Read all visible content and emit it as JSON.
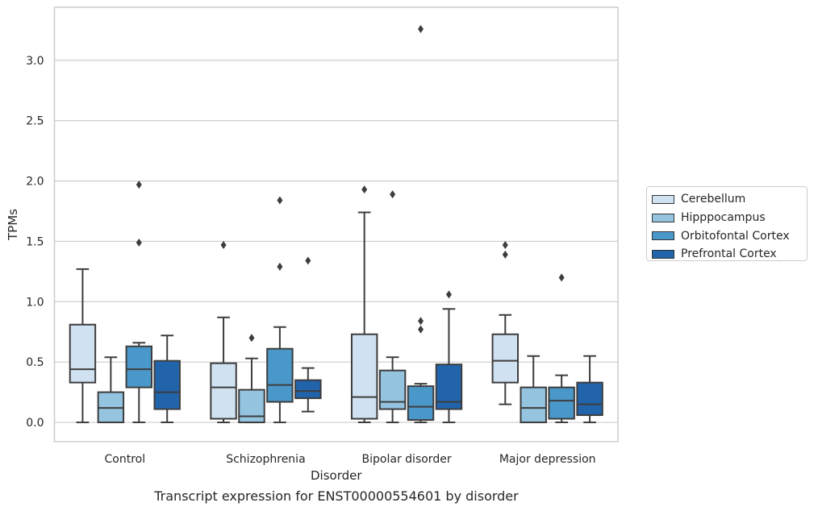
{
  "caption": "Transcript expression for ENST00000554601 by disorder",
  "chart_data": {
    "type": "box",
    "xlabel": "Disorder",
    "ylabel": "TPMs",
    "ylim": [
      -0.16,
      3.44
    ],
    "yticks": [
      0.0,
      0.5,
      1.0,
      1.5,
      2.0,
      2.5,
      3.0
    ],
    "ytick_labels": [
      "0.0",
      "0.5",
      "1.0",
      "1.5",
      "2.0",
      "2.5",
      "3.0"
    ],
    "grid": "horizontal",
    "legend_position": "right",
    "categories": [
      "Control",
      "Schizophrenia",
      "Bipolar disorder",
      "Major depression"
    ],
    "series": [
      {
        "name": "Cerebellum",
        "color": "#d0e1f2",
        "boxes": [
          {
            "low": 0.0,
            "q1": 0.33,
            "median": 0.44,
            "q3": 0.81,
            "high": 1.27,
            "outliers": []
          },
          {
            "low": 0.0,
            "q1": 0.03,
            "median": 0.29,
            "q3": 0.49,
            "high": 0.87,
            "outliers": [
              1.47
            ]
          },
          {
            "low": 0.0,
            "q1": 0.03,
            "median": 0.21,
            "q3": 0.73,
            "high": 1.74,
            "outliers": [
              1.93
            ]
          },
          {
            "low": 0.15,
            "q1": 0.33,
            "median": 0.51,
            "q3": 0.73,
            "high": 0.89,
            "outliers": [
              1.39,
              1.47
            ]
          }
        ]
      },
      {
        "name": "Hipppocampus",
        "color": "#94c4df",
        "boxes": [
          {
            "low": 0.0,
            "q1": 0.0,
            "median": 0.12,
            "q3": 0.25,
            "high": 0.54,
            "outliers": []
          },
          {
            "low": 0.0,
            "q1": 0.0,
            "median": 0.05,
            "q3": 0.27,
            "high": 0.53,
            "outliers": [
              0.7
            ]
          },
          {
            "low": 0.0,
            "q1": 0.11,
            "median": 0.17,
            "q3": 0.43,
            "high": 0.54,
            "outliers": [
              1.89
            ]
          },
          {
            "low": 0.0,
            "q1": 0.0,
            "median": 0.12,
            "q3": 0.29,
            "high": 0.55,
            "outliers": []
          }
        ]
      },
      {
        "name": "Orbitofontal Cortex",
        "color": "#4a98c9",
        "boxes": [
          {
            "low": 0.0,
            "q1": 0.29,
            "median": 0.44,
            "q3": 0.63,
            "high": 0.66,
            "outliers": [
              1.49,
              1.97
            ]
          },
          {
            "low": 0.0,
            "q1": 0.17,
            "median": 0.31,
            "q3": 0.61,
            "high": 0.79,
            "outliers": [
              1.29,
              1.84
            ]
          },
          {
            "low": 0.0,
            "q1": 0.02,
            "median": 0.13,
            "q3": 0.3,
            "high": 0.32,
            "outliers": [
              0.77,
              0.84,
              3.26
            ]
          },
          {
            "low": 0.0,
            "q1": 0.03,
            "median": 0.18,
            "q3": 0.29,
            "high": 0.39,
            "outliers": [
              1.2
            ]
          }
        ]
      },
      {
        "name": "Prefrontal Cortex",
        "color": "#2164ab",
        "boxes": [
          {
            "low": 0.0,
            "q1": 0.11,
            "median": 0.25,
            "q3": 0.51,
            "high": 0.72,
            "outliers": []
          },
          {
            "low": 0.09,
            "q1": 0.2,
            "median": 0.26,
            "q3": 0.35,
            "high": 0.45,
            "outliers": [
              1.34
            ]
          },
          {
            "low": 0.0,
            "q1": 0.11,
            "median": 0.17,
            "q3": 0.48,
            "high": 0.94,
            "outliers": [
              1.06
            ]
          },
          {
            "low": 0.0,
            "q1": 0.06,
            "median": 0.15,
            "q3": 0.33,
            "high": 0.55,
            "outliers": []
          }
        ]
      }
    ]
  }
}
